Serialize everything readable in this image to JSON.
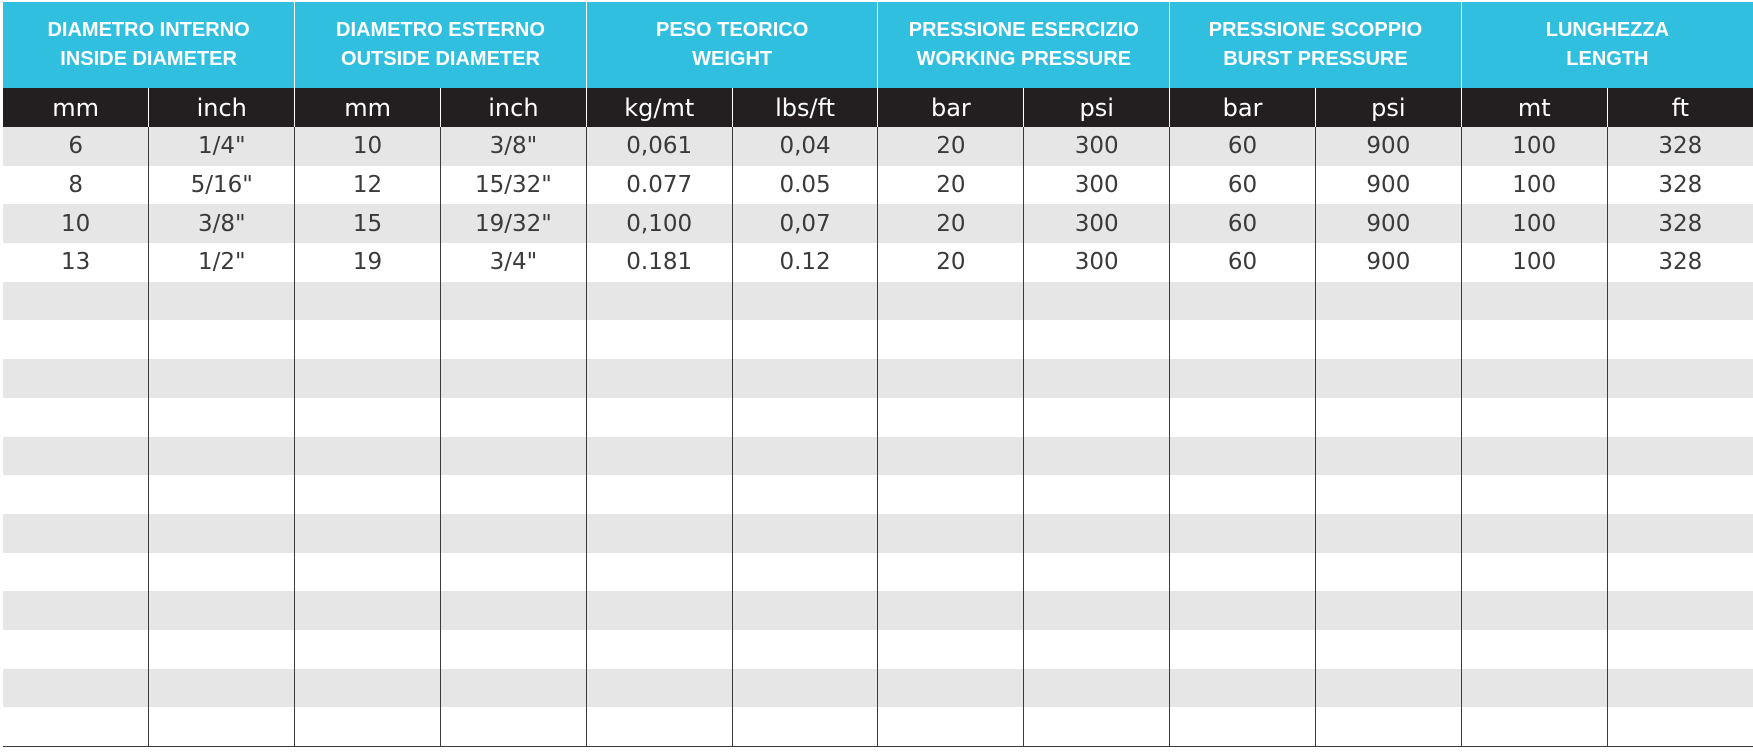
{
  "colors": {
    "header_bg": "#31bfe0",
    "unit_row_bg": "#231f20",
    "stripe_bg": "#e6e6e7",
    "text": "#3a3a3a"
  },
  "table": {
    "group_headers": [
      {
        "it": "DIAMETRO INTERNO",
        "en": "INSIDE DIAMETER"
      },
      {
        "it": "DIAMETRO ESTERNO",
        "en": "OUTSIDE DIAMETER"
      },
      {
        "it": "PESO TEORICO",
        "en": "WEIGHT"
      },
      {
        "it": "PRESSIONE ESERCIZIO",
        "en": "WORKING PRESSURE"
      },
      {
        "it": "PRESSIONE SCOPPIO",
        "en": "BURST PRESSURE"
      },
      {
        "it": "LUNGHEZZA",
        "en": "LENGTH"
      }
    ],
    "units": [
      "mm",
      "inch",
      "mm",
      "inch",
      "kg/mt",
      "lbs/ft",
      "bar",
      "psi",
      "bar",
      "psi",
      "mt",
      "ft"
    ],
    "rows": [
      [
        "6",
        "1/4\"",
        "10",
        "3/8\"",
        "0,061",
        "0,04",
        "20",
        "300",
        "60",
        "900",
        "100",
        "328"
      ],
      [
        "8",
        "5/16\"",
        "12",
        "15/32\"",
        "0.077",
        "0.05",
        "20",
        "300",
        "60",
        "900",
        "100",
        "328"
      ],
      [
        "10",
        "3/8\"",
        "15",
        "19/32\"",
        "0,100",
        "0,07",
        "20",
        "300",
        "60",
        "900",
        "100",
        "328"
      ],
      [
        "13",
        "1/2\"",
        "19",
        "3/4\"",
        "0.181",
        "0.12",
        "20",
        "300",
        "60",
        "900",
        "100",
        "328"
      ],
      [
        "",
        "",
        "",
        "",
        "",
        "",
        "",
        "",
        "",
        "",
        "",
        ""
      ],
      [
        "",
        "",
        "",
        "",
        "",
        "",
        "",
        "",
        "",
        "",
        "",
        ""
      ],
      [
        "",
        "",
        "",
        "",
        "",
        "",
        "",
        "",
        "",
        "",
        "",
        ""
      ],
      [
        "",
        "",
        "",
        "",
        "",
        "",
        "",
        "",
        "",
        "",
        "",
        ""
      ],
      [
        "",
        "",
        "",
        "",
        "",
        "",
        "",
        "",
        "",
        "",
        "",
        ""
      ],
      [
        "",
        "",
        "",
        "",
        "",
        "",
        "",
        "",
        "",
        "",
        "",
        ""
      ],
      [
        "",
        "",
        "",
        "",
        "",
        "",
        "",
        "",
        "",
        "",
        "",
        ""
      ],
      [
        "",
        "",
        "",
        "",
        "",
        "",
        "",
        "",
        "",
        "",
        "",
        ""
      ],
      [
        "",
        "",
        "",
        "",
        "",
        "",
        "",
        "",
        "",
        "",
        "",
        ""
      ],
      [
        "",
        "",
        "",
        "",
        "",
        "",
        "",
        "",
        "",
        "",
        "",
        ""
      ],
      [
        "",
        "",
        "",
        "",
        "",
        "",
        "",
        "",
        "",
        "",
        "",
        ""
      ],
      [
        "",
        "",
        "",
        "",
        "",
        "",
        "",
        "",
        "",
        "",
        "",
        ""
      ]
    ]
  }
}
